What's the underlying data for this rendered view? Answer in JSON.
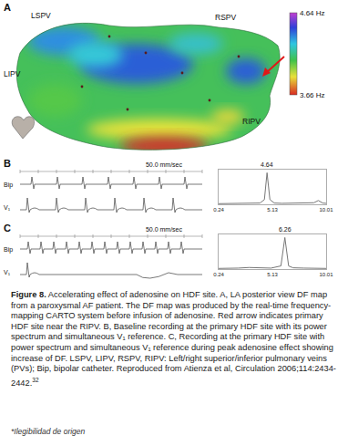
{
  "figure": {
    "panel_A": {
      "letter": "A",
      "labels": [
        "LSPV",
        "RSPV",
        "LIPV",
        "RIPV"
      ],
      "colorbar": {
        "range": [
          3.66,
          4.64
        ],
        "ticks": [
          {
            "value": 4.64,
            "label": "4.64 Hz"
          },
          {
            "value": 3.66,
            "label": "3.66 Hz"
          }
        ]
      }
    },
    "panel_B": {
      "letter": "B",
      "speed": "50.0 mm/sec",
      "channels": [
        "Bip",
        "V₁"
      ]
    },
    "panel_C": {
      "letter": "C",
      "speed": "50.0 mm/sec",
      "channels": [
        "Bip",
        "V₁"
      ]
    }
  },
  "chart_data": [
    {
      "type": "line",
      "x": [
        0.24,
        1,
        2,
        3,
        4,
        4.4,
        4.64,
        4.9,
        5.3,
        6,
        7,
        8,
        8.9,
        9.3,
        9.7,
        10.01
      ],
      "values": [
        0.02,
        0.02,
        0.03,
        0.03,
        0.04,
        0.15,
        1.0,
        0.15,
        0.04,
        0.03,
        0.03,
        0.03,
        0.05,
        0.12,
        0.04,
        0.03
      ],
      "color": "#777777",
      "xlim": [
        0.24,
        10.01
      ],
      "xticks": [
        0.24,
        5.13,
        10.01
      ],
      "ylim": [
        0,
        1.1
      ],
      "grid": false,
      "tick_labels": "x",
      "annotations": [
        {
          "x": 4.64,
          "text": "4.64"
        }
      ]
    },
    {
      "type": "line",
      "x": [
        0.24,
        1,
        2,
        3,
        4,
        5,
        5.9,
        6.26,
        6.6,
        7,
        8,
        9,
        10.01
      ],
      "values": [
        0.02,
        0.02,
        0.03,
        0.05,
        0.04,
        0.03,
        0.1,
        1.0,
        0.1,
        0.04,
        0.03,
        0.03,
        0.02
      ],
      "color": "#777777",
      "xlim": [
        0.24,
        10.01
      ],
      "xticks": [
        0.24,
        5.13,
        10.01
      ],
      "ylim": [
        0,
        1.1
      ],
      "grid": false,
      "tick_labels": "x",
      "annotations": [
        {
          "x": 6.26,
          "text": "6.26"
        }
      ]
    }
  ],
  "caption": {
    "lead": "Figure 8.",
    "text": "Accelerating effect of adenosine on HDF site. A, LA posterior view DF map from a paroxysmal AF patient. The DF map was produced by the real-time frequency-mapping CARTO system before infusion of adenosine. Red arrow indicates primary HDF site near the RIPV. B, Baseline recording at the primary HDF site with its power spectrum and simultaneous V₁ reference. C, Recording at the primary HDF site with power spectrum and simultaneous V₁ reference during peak adenosine effect showing increase of DF. LSPV, LIPV, RSPV, RIPV: Left/right superior/inferior pulmonary veins (PVs); Bip, bipolar catheter. Reproduced from Atienza et al, Circulation 2006;114:2434-2442.",
    "ref": "32"
  },
  "footnote": "*Ilegibilidad de origen"
}
